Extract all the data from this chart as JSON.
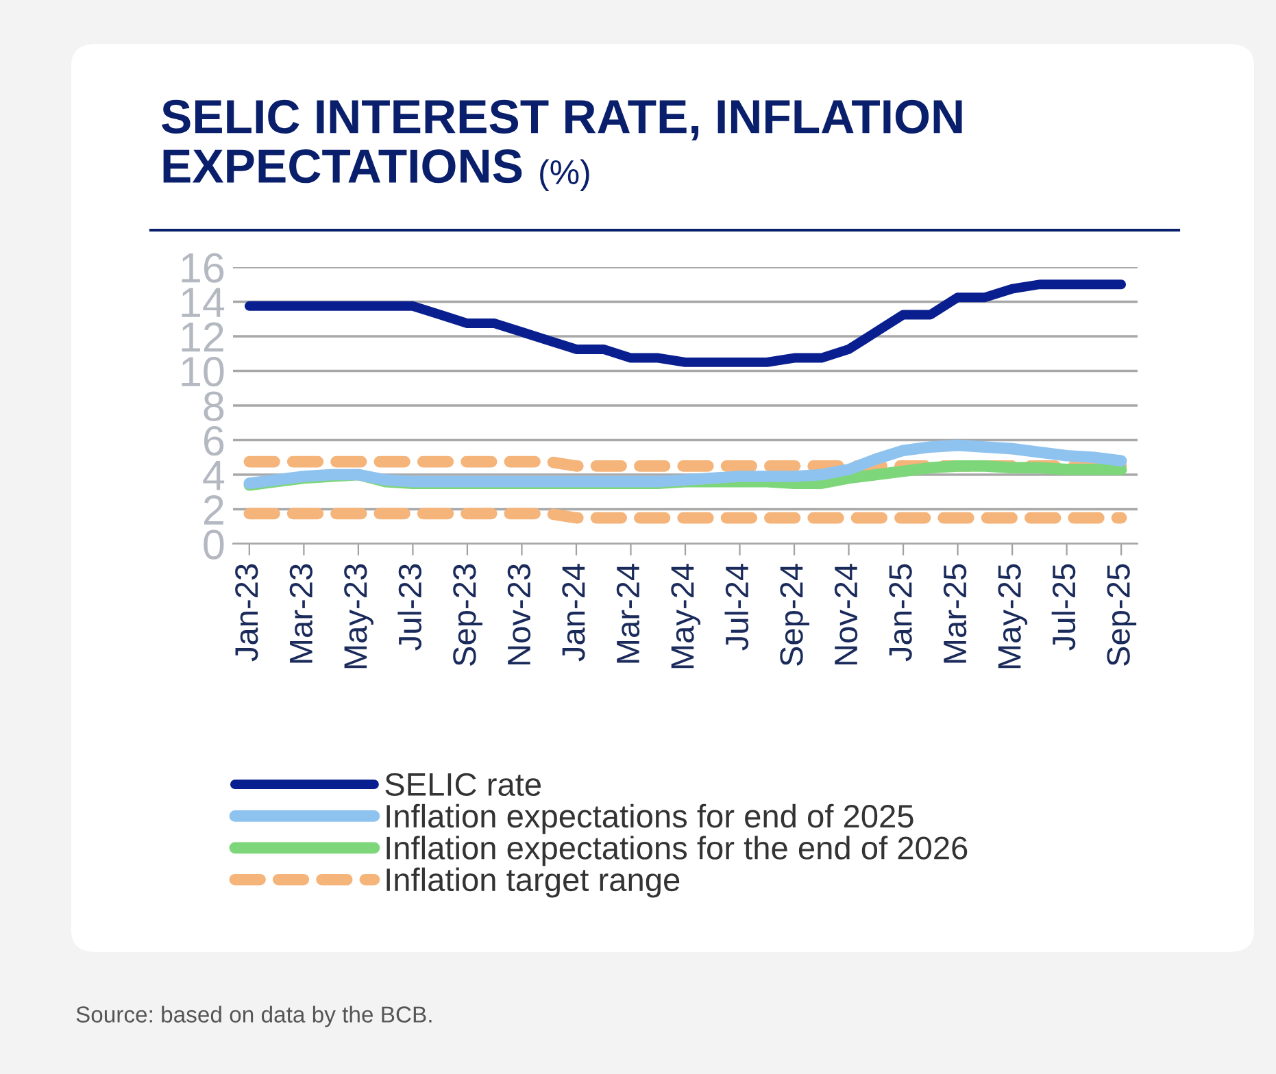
{
  "chart_data": {
    "type": "line",
    "title": "SELIC INTEREST RATE, INFLATION EXPECTATIONS",
    "subtitle": "(%)",
    "categories": [
      "Jan-23",
      null,
      "Mar-23",
      null,
      "May-23",
      null,
      "Jul-23",
      null,
      "Sep-23",
      null,
      "Nov-23",
      null,
      "Jan-24",
      null,
      "Mar-24",
      null,
      "May-24",
      null,
      "Jul-24",
      null,
      "Sep-24",
      null,
      "Nov-24",
      null,
      "Jan-25",
      null,
      "Mar-25",
      null,
      "May-25",
      null,
      "Jul-25",
      null,
      "Sep-25"
    ],
    "series": [
      {
        "name": "SELIC rate",
        "color": "#0a1f8f",
        "values": [
          13.75,
          13.75,
          13.75,
          13.75,
          13.75,
          13.75,
          13.75,
          13.25,
          12.75,
          12.75,
          12.25,
          11.75,
          11.25,
          11.25,
          10.75,
          10.75,
          10.5,
          10.5,
          10.5,
          10.5,
          10.75,
          10.75,
          11.25,
          12.25,
          13.25,
          13.25,
          14.25,
          14.25,
          14.75,
          15.0,
          15.0,
          15.0,
          15.0
        ]
      },
      {
        "name": "Inflation expectations for end of 2025",
        "color": "#8fc3ef",
        "values": [
          3.5,
          3.7,
          3.9,
          4.0,
          4.0,
          3.7,
          3.6,
          3.6,
          3.6,
          3.6,
          3.6,
          3.6,
          3.6,
          3.6,
          3.6,
          3.6,
          3.7,
          3.8,
          3.9,
          3.9,
          3.9,
          4.0,
          4.3,
          4.9,
          5.4,
          5.6,
          5.7,
          5.6,
          5.5,
          5.3,
          5.1,
          5.0,
          4.8
        ]
      },
      {
        "name": "Inflation expectations for the end of 2026",
        "color": "#7ed67a",
        "values": [
          3.4,
          3.6,
          3.8,
          3.9,
          4.0,
          3.6,
          3.5,
          3.5,
          3.5,
          3.5,
          3.5,
          3.5,
          3.5,
          3.5,
          3.5,
          3.5,
          3.6,
          3.6,
          3.6,
          3.6,
          3.5,
          3.5,
          3.8,
          4.0,
          4.2,
          4.4,
          4.5,
          4.5,
          4.4,
          4.4,
          4.3,
          4.3,
          4.3
        ]
      },
      {
        "name": "Inflation target range",
        "color": "#f5b47a",
        "line_style": "dashed",
        "values": [
          4.75,
          4.75,
          4.75,
          4.75,
          4.75,
          4.75,
          4.75,
          4.75,
          4.75,
          4.75,
          4.75,
          4.75,
          4.5,
          4.5,
          4.5,
          4.5,
          4.5,
          4.5,
          4.5,
          4.5,
          4.5,
          4.5,
          4.5,
          4.5,
          4.5,
          4.5,
          4.5,
          4.5,
          4.5,
          4.5,
          4.5,
          4.5,
          4.5
        ]
      },
      {
        "color": "#f5b47a",
        "line_style": "dashed",
        "values": [
          1.75,
          1.75,
          1.75,
          1.75,
          1.75,
          1.75,
          1.75,
          1.75,
          1.75,
          1.75,
          1.75,
          1.75,
          1.5,
          1.5,
          1.5,
          1.5,
          1.5,
          1.5,
          1.5,
          1.5,
          1.5,
          1.5,
          1.5,
          1.5,
          1.5,
          1.5,
          1.5,
          1.5,
          1.5,
          1.5,
          1.5,
          1.5,
          1.5
        ]
      }
    ],
    "ylim": [
      0,
      16
    ],
    "yticks": [
      0,
      2,
      4,
      6,
      8,
      10,
      12,
      14,
      16
    ],
    "grid": "y",
    "legend": "bottom",
    "marker": "none",
    "line_style": "solid",
    "annotations": [
      "Source: based on data by the BCB."
    ]
  }
}
